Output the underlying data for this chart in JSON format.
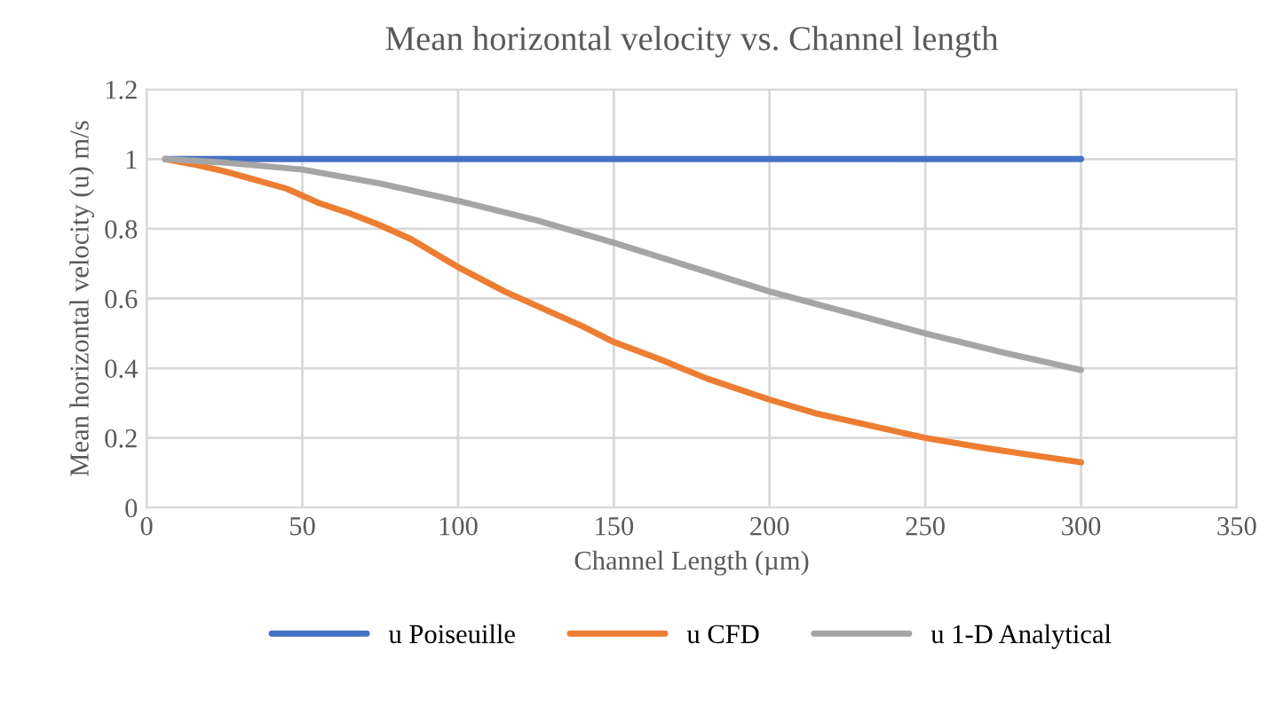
{
  "chart_data": {
    "type": "line",
    "title": "Mean horizontal velocity vs. Channel length",
    "xlabel": "Channel Length (µm)",
    "ylabel": "Mean horizontal velocity (u) m/s",
    "xlim": [
      0,
      350
    ],
    "xticks": [
      0,
      50,
      100,
      150,
      200,
      250,
      300,
      350
    ],
    "ylim": [
      0,
      1.2
    ],
    "yticks": [
      0,
      0.2,
      0.4,
      0.6,
      0.8,
      1,
      1.2
    ],
    "grid": true,
    "legend": "bottom",
    "marker": "none",
    "line_style": "solid",
    "series": [
      {
        "name": "u Poiseuille",
        "color": "#4472c4",
        "x": [
          6,
          50,
          100,
          150,
          200,
          250,
          300
        ],
        "values": [
          1,
          1,
          1,
          1,
          1,
          1,
          1
        ]
      },
      {
        "name": "u CFD",
        "color": "#ed7d31",
        "x": [
          6,
          15,
          25,
          35,
          45,
          55,
          65,
          75,
          85,
          100,
          115,
          125,
          140,
          150,
          165,
          180,
          200,
          215,
          230,
          250,
          270,
          285,
          300
        ],
        "values": [
          1,
          0.985,
          0.965,
          0.94,
          0.915,
          0.875,
          0.845,
          0.81,
          0.77,
          0.69,
          0.62,
          0.58,
          0.52,
          0.475,
          0.425,
          0.37,
          0.31,
          0.27,
          0.24,
          0.2,
          0.17,
          0.15,
          0.13
        ]
      },
      {
        "name": "u 1-D Analytical",
        "color": "#a5a5a5",
        "x": [
          6,
          25,
          50,
          75,
          100,
          125,
          150,
          175,
          200,
          225,
          250,
          275,
          300
        ],
        "values": [
          1,
          0.99,
          0.97,
          0.93,
          0.88,
          0.825,
          0.76,
          0.69,
          0.62,
          0.56,
          0.5,
          0.445,
          0.395
        ]
      }
    ]
  }
}
